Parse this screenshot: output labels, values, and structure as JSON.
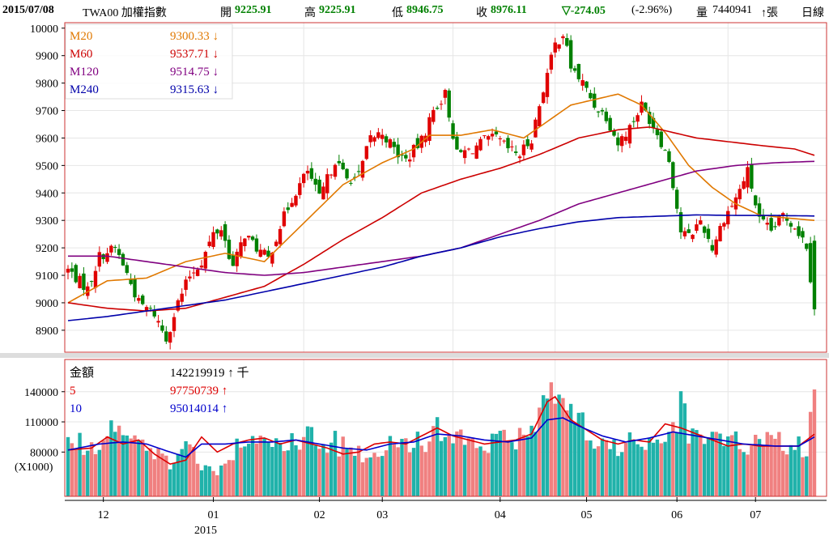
{
  "header": {
    "date": "2015/07/08",
    "symbol": "TWA00 加權指數",
    "open_label": "開",
    "open": "9225.91",
    "high_label": "高",
    "high": "9225.91",
    "low_label": "低",
    "low": "8946.75",
    "close_label": "收",
    "close": "8976.11",
    "change": "▽-274.05",
    "change_pct": "(-2.96%)",
    "volume_label": "量",
    "volume": "7440941",
    "volume_unit": "↑張",
    "period": "日線"
  },
  "chart_data": [
    {
      "type": "candlestick",
      "y_ticks": [
        10000,
        9900,
        9800,
        9700,
        9600,
        9500,
        9400,
        9300,
        9200,
        9100,
        9000,
        8900
      ],
      "ylim": [
        8820,
        10020
      ],
      "x_ticks": [
        "12",
        "01",
        "02",
        "03",
        "04",
        "05",
        "06",
        "07"
      ],
      "x_year_label": "2015",
      "legend": [
        {
          "name": "M20",
          "value": "9300.33",
          "arrow": "↓",
          "color": "#e07800"
        },
        {
          "name": "M60",
          "value": "9537.71",
          "arrow": "↓",
          "color": "#cc0000"
        },
        {
          "name": "M120",
          "value": "9514.75",
          "arrow": "↓",
          "color": "#800080"
        },
        {
          "name": "M240",
          "value": "9315.63",
          "arrow": "↓",
          "color": "#0000aa"
        }
      ],
      "up_color": "#e00000",
      "down_color": "#008000",
      "close_anchors": [
        [
          0,
          9120
        ],
        [
          5,
          9050
        ],
        [
          8,
          9170
        ],
        [
          12,
          9200
        ],
        [
          14,
          9140
        ],
        [
          18,
          9000
        ],
        [
          22,
          8960
        ],
        [
          25,
          8870
        ],
        [
          28,
          9000
        ],
        [
          31,
          9100
        ],
        [
          34,
          9150
        ],
        [
          37,
          9250
        ],
        [
          39,
          9270
        ],
        [
          42,
          9130
        ],
        [
          45,
          9250
        ],
        [
          48,
          9200
        ],
        [
          51,
          9160
        ],
        [
          54,
          9280
        ],
        [
          57,
          9380
        ],
        [
          61,
          9480
        ],
        [
          64,
          9380
        ],
        [
          68,
          9520
        ],
        [
          71,
          9450
        ],
        [
          74,
          9460
        ],
        [
          77,
          9600
        ],
        [
          80,
          9620
        ],
        [
          84,
          9540
        ],
        [
          86,
          9520
        ],
        [
          90,
          9590
        ],
        [
          93,
          9700
        ],
        [
          96,
          9760
        ],
        [
          99,
          9540
        ],
        [
          103,
          9560
        ],
        [
          106,
          9590
        ],
        [
          109,
          9600
        ],
        [
          112,
          9560
        ],
        [
          115,
          9540
        ],
        [
          118,
          9600
        ],
        [
          121,
          9780
        ],
        [
          124,
          9940
        ],
        [
          126,
          9980
        ],
        [
          128,
          9860
        ],
        [
          131,
          9800
        ],
        [
          134,
          9720
        ],
        [
          137,
          9680
        ],
        [
          140,
          9580
        ],
        [
          143,
          9640
        ],
        [
          146,
          9720
        ],
        [
          150,
          9620
        ],
        [
          153,
          9520
        ],
        [
          156,
          9260
        ],
        [
          158,
          9240
        ],
        [
          161,
          9300
        ],
        [
          164,
          9200
        ],
        [
          167,
          9310
        ],
        [
          170,
          9380
        ],
        [
          173,
          9480
        ],
        [
          176,
          9300
        ],
        [
          179,
          9260
        ],
        [
          182,
          9320
        ],
        [
          185,
          9280
        ],
        [
          188,
          9210
        ],
        [
          190,
          8976
        ]
      ],
      "moving_averages": {
        "M20": [
          [
            0,
            9000
          ],
          [
            10,
            9080
          ],
          [
            20,
            9090
          ],
          [
            30,
            9150
          ],
          [
            40,
            9180
          ],
          [
            50,
            9150
          ],
          [
            60,
            9290
          ],
          [
            70,
            9430
          ],
          [
            80,
            9510
          ],
          [
            88,
            9560
          ],
          [
            92,
            9610
          ],
          [
            100,
            9610
          ],
          [
            108,
            9630
          ],
          [
            116,
            9600
          ],
          [
            122,
            9660
          ],
          [
            128,
            9720
          ],
          [
            134,
            9740
          ],
          [
            140,
            9760
          ],
          [
            146,
            9720
          ],
          [
            152,
            9620
          ],
          [
            158,
            9500
          ],
          [
            164,
            9420
          ],
          [
            170,
            9360
          ],
          [
            176,
            9320
          ],
          [
            182,
            9310
          ],
          [
            190,
            9300
          ]
        ],
        "M60": [
          [
            0,
            9000
          ],
          [
            10,
            8980
          ],
          [
            20,
            8970
          ],
          [
            30,
            8980
          ],
          [
            40,
            9020
          ],
          [
            50,
            9060
          ],
          [
            60,
            9140
          ],
          [
            70,
            9230
          ],
          [
            80,
            9310
          ],
          [
            90,
            9400
          ],
          [
            100,
            9450
          ],
          [
            110,
            9490
          ],
          [
            120,
            9540
          ],
          [
            130,
            9600
          ],
          [
            140,
            9630
          ],
          [
            148,
            9640
          ],
          [
            154,
            9620
          ],
          [
            160,
            9600
          ],
          [
            166,
            9590
          ],
          [
            172,
            9580
          ],
          [
            178,
            9570
          ],
          [
            185,
            9560
          ],
          [
            190,
            9537
          ]
        ],
        "M120": [
          [
            0,
            9170
          ],
          [
            10,
            9170
          ],
          [
            20,
            9150
          ],
          [
            30,
            9130
          ],
          [
            40,
            9110
          ],
          [
            50,
            9100
          ],
          [
            60,
            9110
          ],
          [
            70,
            9130
          ],
          [
            80,
            9150
          ],
          [
            90,
            9170
          ],
          [
            100,
            9200
          ],
          [
            110,
            9250
          ],
          [
            120,
            9300
          ],
          [
            130,
            9360
          ],
          [
            140,
            9400
          ],
          [
            150,
            9440
          ],
          [
            160,
            9480
          ],
          [
            170,
            9500
          ],
          [
            180,
            9510
          ],
          [
            190,
            9515
          ]
        ],
        "M240": [
          [
            0,
            8935
          ],
          [
            10,
            8950
          ],
          [
            20,
            8970
          ],
          [
            30,
            8990
          ],
          [
            40,
            9010
          ],
          [
            50,
            9040
          ],
          [
            60,
            9070
          ],
          [
            70,
            9100
          ],
          [
            80,
            9130
          ],
          [
            90,
            9170
          ],
          [
            100,
            9200
          ],
          [
            110,
            9240
          ],
          [
            120,
            9270
          ],
          [
            130,
            9295
          ],
          [
            140,
            9310
          ],
          [
            150,
            9315
          ],
          [
            160,
            9320
          ],
          [
            170,
            9318
          ],
          [
            180,
            9318
          ],
          [
            190,
            9316
          ]
        ]
      },
      "n_bars": 191
    },
    {
      "type": "bar",
      "label": "金額",
      "unit": "(X1000)",
      "y_ticks": [
        140000,
        110000,
        80000
      ],
      "ylim": [
        36000,
        172000
      ],
      "legend": [
        {
          "name": "金額",
          "value": "142219919",
          "arrow": "↑",
          "suffix": "千",
          "color": "#000000"
        },
        {
          "name": "5",
          "value": "97750739",
          "arrow": "↑",
          "color": "#dd0000"
        },
        {
          "name": "10",
          "value": "95014014",
          "arrow": "↑",
          "color": "#0000cc"
        }
      ],
      "up_color": "#f08080",
      "down_color": "#20b2aa",
      "volume_anchors": [
        [
          0,
          90000
        ],
        [
          8,
          85000
        ],
        [
          12,
          105000
        ],
        [
          18,
          100000
        ],
        [
          22,
          80000
        ],
        [
          26,
          70000
        ],
        [
          30,
          95000
        ],
        [
          34,
          60000
        ],
        [
          38,
          60000
        ],
        [
          42,
          78000
        ],
        [
          46,
          92000
        ],
        [
          50,
          95000
        ],
        [
          54,
          85000
        ],
        [
          58,
          96000
        ],
        [
          62,
          94000
        ],
        [
          66,
          92000
        ],
        [
          70,
          86000
        ],
        [
          74,
          78000
        ],
        [
          78,
          80000
        ],
        [
          82,
          88000
        ],
        [
          86,
          90000
        ],
        [
          90,
          88000
        ],
        [
          94,
          100000
        ],
        [
          98,
          98000
        ],
        [
          102,
          90000
        ],
        [
          106,
          92000
        ],
        [
          110,
          88000
        ],
        [
          114,
          92000
        ],
        [
          118,
          98000
        ],
        [
          121,
          128000
        ],
        [
          123,
          165000
        ],
        [
          126,
          120000
        ],
        [
          130,
          110000
        ],
        [
          134,
          98000
        ],
        [
          138,
          86000
        ],
        [
          142,
          90000
        ],
        [
          146,
          86000
        ],
        [
          150,
          98000
        ],
        [
          154,
          100000
        ],
        [
          156,
          130000
        ],
        [
          158,
          100000
        ],
        [
          162,
          96000
        ],
        [
          166,
          92000
        ],
        [
          170,
          88000
        ],
        [
          174,
          86000
        ],
        [
          178,
          90000
        ],
        [
          182,
          86000
        ],
        [
          186,
          84000
        ],
        [
          188,
          80000
        ],
        [
          190,
          142219
        ]
      ],
      "ma5": [
        [
          0,
          82000
        ],
        [
          6,
          84000
        ],
        [
          10,
          95000
        ],
        [
          14,
          88000
        ],
        [
          18,
          92000
        ],
        [
          22,
          78000
        ],
        [
          26,
          68000
        ],
        [
          30,
          72000
        ],
        [
          34,
          95000
        ],
        [
          38,
          80000
        ],
        [
          42,
          88000
        ],
        [
          46,
          92000
        ],
        [
          50,
          94000
        ],
        [
          54,
          88000
        ],
        [
          58,
          92000
        ],
        [
          62,
          88000
        ],
        [
          66,
          84000
        ],
        [
          70,
          78000
        ],
        [
          74,
          80000
        ],
        [
          78,
          88000
        ],
        [
          82,
          90000
        ],
        [
          86,
          88000
        ],
        [
          90,
          96000
        ],
        [
          94,
          104000
        ],
        [
          98,
          96000
        ],
        [
          102,
          92000
        ],
        [
          106,
          88000
        ],
        [
          110,
          90000
        ],
        [
          114,
          92000
        ],
        [
          118,
          98000
        ],
        [
          122,
          130000
        ],
        [
          124,
          135000
        ],
        [
          128,
          112000
        ],
        [
          132,
          102000
        ],
        [
          136,
          92000
        ],
        [
          140,
          88000
        ],
        [
          144,
          92000
        ],
        [
          148,
          90000
        ],
        [
          152,
          108000
        ],
        [
          156,
          104000
        ],
        [
          160,
          98000
        ],
        [
          164,
          92000
        ],
        [
          168,
          86000
        ],
        [
          172,
          88000
        ],
        [
          176,
          86000
        ],
        [
          180,
          86000
        ],
        [
          186,
          86000
        ],
        [
          190,
          97750
        ]
      ],
      "ma10": [
        [
          0,
          82000
        ],
        [
          8,
          88000
        ],
        [
          14,
          90000
        ],
        [
          20,
          88000
        ],
        [
          26,
          80000
        ],
        [
          30,
          75000
        ],
        [
          34,
          88000
        ],
        [
          40,
          88000
        ],
        [
          46,
          90000
        ],
        [
          52,
          90000
        ],
        [
          58,
          92000
        ],
        [
          64,
          88000
        ],
        [
          70,
          84000
        ],
        [
          76,
          82000
        ],
        [
          82,
          88000
        ],
        [
          88,
          90000
        ],
        [
          94,
          98000
        ],
        [
          100,
          96000
        ],
        [
          106,
          92000
        ],
        [
          112,
          90000
        ],
        [
          118,
          94000
        ],
        [
          122,
          112000
        ],
        [
          126,
          114000
        ],
        [
          130,
          106000
        ],
        [
          136,
          96000
        ],
        [
          142,
          90000
        ],
        [
          148,
          94000
        ],
        [
          154,
          100000
        ],
        [
          160,
          96000
        ],
        [
          166,
          92000
        ],
        [
          172,
          88000
        ],
        [
          180,
          86000
        ],
        [
          186,
          86000
        ],
        [
          190,
          95014
        ]
      ]
    }
  ]
}
